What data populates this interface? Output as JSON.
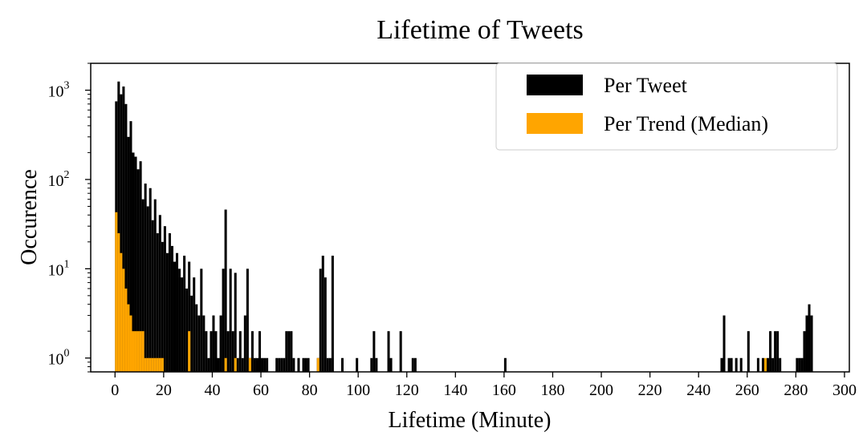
{
  "chart_data": {
    "type": "bar",
    "title": "Lifetime of Tweets",
    "xlabel": "Lifetime (Minute)",
    "ylabel": "Occurence",
    "y_scale": "log",
    "xlim": [
      -10,
      302
    ],
    "ylim": [
      0.7,
      2000
    ],
    "bin_width_minutes": 1,
    "grid": false,
    "legend_position": "top-right",
    "x_ticks": [
      0,
      20,
      40,
      60,
      80,
      100,
      120,
      140,
      160,
      180,
      200,
      220,
      240,
      260,
      280,
      300
    ],
    "y_ticks": [
      {
        "value": 1,
        "base": "10",
        "exp": "0"
      },
      {
        "value": 10,
        "base": "10",
        "exp": "1"
      },
      {
        "value": 100,
        "base": "10",
        "exp": "2"
      },
      {
        "value": 1000,
        "base": "10",
        "exp": "3"
      }
    ],
    "series": [
      {
        "name": "Per Tweet",
        "color": "#000000",
        "points": [
          [
            0,
            750
          ],
          [
            1,
            1250
          ],
          [
            2,
            900
          ],
          [
            3,
            1100
          ],
          [
            4,
            700
          ],
          [
            5,
            300
          ],
          [
            6,
            450
          ],
          [
            7,
            200
          ],
          [
            8,
            180
          ],
          [
            9,
            130
          ],
          [
            10,
            160
          ],
          [
            11,
            60
          ],
          [
            12,
            90
          ],
          [
            13,
            50
          ],
          [
            14,
            80
          ],
          [
            15,
            35
          ],
          [
            16,
            60
          ],
          [
            17,
            25
          ],
          [
            18,
            40
          ],
          [
            19,
            20
          ],
          [
            20,
            30
          ],
          [
            21,
            15
          ],
          [
            22,
            25
          ],
          [
            23,
            18
          ],
          [
            24,
            12
          ],
          [
            25,
            15
          ],
          [
            26,
            10
          ],
          [
            27,
            8
          ],
          [
            28,
            14
          ],
          [
            29,
            6
          ],
          [
            30,
            12
          ],
          [
            31,
            5
          ],
          [
            32,
            8
          ],
          [
            33,
            4
          ],
          [
            34,
            3
          ],
          [
            35,
            10
          ],
          [
            36,
            3
          ],
          [
            37,
            2
          ],
          [
            38,
            1
          ],
          [
            39,
            2
          ],
          [
            40,
            3
          ],
          [
            41,
            2
          ],
          [
            42,
            1
          ],
          [
            43,
            3
          ],
          [
            44,
            10
          ],
          [
            45,
            46
          ],
          [
            46,
            2
          ],
          [
            47,
            10
          ],
          [
            48,
            2
          ],
          [
            49,
            9
          ],
          [
            50,
            1
          ],
          [
            51,
            2
          ],
          [
            52,
            1
          ],
          [
            53,
            3
          ],
          [
            54,
            10
          ],
          [
            55,
            1
          ],
          [
            56,
            2
          ],
          [
            57,
            1
          ],
          [
            58,
            1
          ],
          [
            59,
            2
          ],
          [
            60,
            1
          ],
          [
            61,
            1
          ],
          [
            62,
            1
          ],
          [
            66,
            1
          ],
          [
            67,
            1
          ],
          [
            68,
            1
          ],
          [
            69,
            1
          ],
          [
            70,
            2
          ],
          [
            71,
            2
          ],
          [
            72,
            2
          ],
          [
            73,
            1
          ],
          [
            75,
            1
          ],
          [
            77,
            1
          ],
          [
            78,
            1
          ],
          [
            79,
            1
          ],
          [
            83,
            1
          ],
          [
            84,
            10
          ],
          [
            85,
            14
          ],
          [
            86,
            8
          ],
          [
            87,
            1
          ],
          [
            88,
            1
          ],
          [
            89,
            14
          ],
          [
            93,
            1
          ],
          [
            99,
            1
          ],
          [
            105,
            1
          ],
          [
            106,
            2
          ],
          [
            107,
            1
          ],
          [
            112,
            2
          ],
          [
            113,
            1
          ],
          [
            117,
            2
          ],
          [
            122,
            1
          ],
          [
            123,
            1
          ],
          [
            160,
            1
          ],
          [
            249,
            1
          ],
          [
            250,
            3
          ],
          [
            252,
            1
          ],
          [
            253,
            1
          ],
          [
            255,
            1
          ],
          [
            257,
            1
          ],
          [
            260,
            2
          ],
          [
            264,
            1
          ],
          [
            266,
            1
          ],
          [
            268,
            1
          ],
          [
            269,
            2
          ],
          [
            270,
            1
          ],
          [
            271,
            2
          ],
          [
            272,
            2
          ],
          [
            273,
            1
          ],
          [
            280,
            1
          ],
          [
            281,
            1
          ],
          [
            282,
            1
          ],
          [
            283,
            2
          ],
          [
            284,
            3
          ],
          [
            285,
            4
          ],
          [
            286,
            3
          ]
        ]
      },
      {
        "name": "Per Trend (Median)",
        "color": "#FFA500",
        "points": [
          [
            0,
            43
          ],
          [
            1,
            25
          ],
          [
            2,
            15
          ],
          [
            3,
            10
          ],
          [
            4,
            6
          ],
          [
            5,
            4
          ],
          [
            6,
            3
          ],
          [
            7,
            2
          ],
          [
            8,
            2
          ],
          [
            9,
            2
          ],
          [
            10,
            2
          ],
          [
            11,
            2
          ],
          [
            12,
            1
          ],
          [
            13,
            1
          ],
          [
            14,
            1
          ],
          [
            15,
            1
          ],
          [
            16,
            1
          ],
          [
            17,
            1
          ],
          [
            18,
            1
          ],
          [
            19,
            1
          ],
          [
            30,
            2
          ],
          [
            45,
            1
          ],
          [
            49,
            1
          ],
          [
            55,
            1
          ],
          [
            83,
            1
          ],
          [
            267,
            1
          ]
        ]
      }
    ]
  }
}
